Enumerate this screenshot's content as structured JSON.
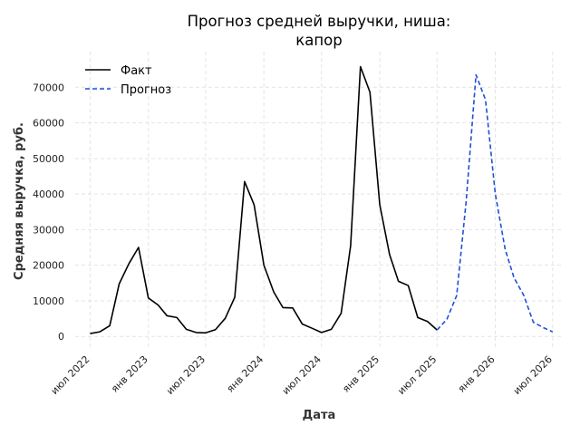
{
  "chart_data": {
    "type": "line",
    "title_lines": [
      "Прогноз средней выручки, ниша:",
      "капор"
    ],
    "xlabel": "Дата",
    "ylabel": "Средняя выручка, руб.",
    "xlim": [
      "2022-05-15",
      "2026-08-05"
    ],
    "ylim": [
      -3000,
      80000
    ],
    "yticks": [
      0,
      10000,
      20000,
      30000,
      40000,
      50000,
      60000,
      70000
    ],
    "xticks": [
      {
        "date": "2022-07-01",
        "label": "июл 2022"
      },
      {
        "date": "2023-01-01",
        "label": "янв 2023"
      },
      {
        "date": "2023-07-01",
        "label": "июл 2023"
      },
      {
        "date": "2024-01-01",
        "label": "янв 2024"
      },
      {
        "date": "2024-07-01",
        "label": "июл 2024"
      },
      {
        "date": "2025-01-01",
        "label": "янв 2025"
      },
      {
        "date": "2025-07-01",
        "label": "июл 2025"
      },
      {
        "date": "2026-01-01",
        "label": "янв 2026"
      },
      {
        "date": "2026-07-01",
        "label": "июл 2026"
      }
    ],
    "grid": true,
    "legend_position": "top-left",
    "series": [
      {
        "name": "Факт",
        "style": "solid",
        "color": "#000000",
        "x": [
          "2022-07-01",
          "2022-08-01",
          "2022-09-01",
          "2022-10-01",
          "2022-11-01",
          "2022-12-01",
          "2023-01-01",
          "2023-02-01",
          "2023-03-01",
          "2023-04-01",
          "2023-05-01",
          "2023-06-01",
          "2023-07-01",
          "2023-08-01",
          "2023-09-01",
          "2023-10-01",
          "2023-11-01",
          "2023-12-01",
          "2024-01-01",
          "2024-02-01",
          "2024-03-01",
          "2024-04-01",
          "2024-05-01",
          "2024-06-01",
          "2024-07-01",
          "2024-08-01",
          "2024-09-01",
          "2024-10-01",
          "2024-11-01",
          "2024-12-01",
          "2025-01-01",
          "2025-02-01",
          "2025-03-01",
          "2025-04-01",
          "2025-05-01",
          "2025-06-01",
          "2025-07-01"
        ],
        "values": [
          800,
          1300,
          3000,
          14800,
          20500,
          25000,
          10800,
          8800,
          5800,
          5300,
          2000,
          1100,
          1000,
          1900,
          5100,
          11000,
          43500,
          37000,
          20000,
          12500,
          8100,
          8000,
          3500,
          2300,
          1100,
          2000,
          6500,
          25500,
          75800,
          68600,
          37000,
          23000,
          15500,
          14300,
          5300,
          4200,
          1800
        ]
      },
      {
        "name": "Прогноз",
        "style": "dashed",
        "color": "#1f4fd6",
        "x": [
          "2025-07-01",
          "2025-08-01",
          "2025-09-01",
          "2025-10-01",
          "2025-11-01",
          "2025-12-01",
          "2026-01-01",
          "2026-02-01",
          "2026-03-01",
          "2026-04-01",
          "2026-05-01",
          "2026-06-01",
          "2026-07-01"
        ],
        "values": [
          1800,
          4800,
          11500,
          38000,
          73500,
          66500,
          40000,
          24500,
          16500,
          11500,
          4000,
          2500,
          1300
        ]
      }
    ]
  }
}
